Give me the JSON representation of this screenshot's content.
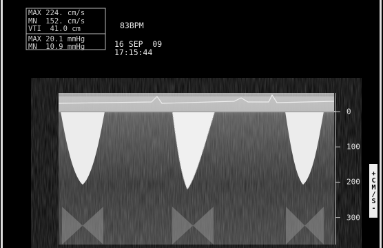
{
  "measurements": [
    "MAX 224. cm/s",
    "MN  152. cm/s",
    "VTI  41.0 cm",
    "MAX 20.1 mmHg",
    "MN  10.9 mmHg"
  ],
  "heart_rate": "83BPM",
  "date": "16 SEP  09",
  "time": "17:15:44",
  "scale": {
    "ticks": [
      0,
      100,
      200,
      300
    ],
    "label": "+CM/S-"
  }
}
